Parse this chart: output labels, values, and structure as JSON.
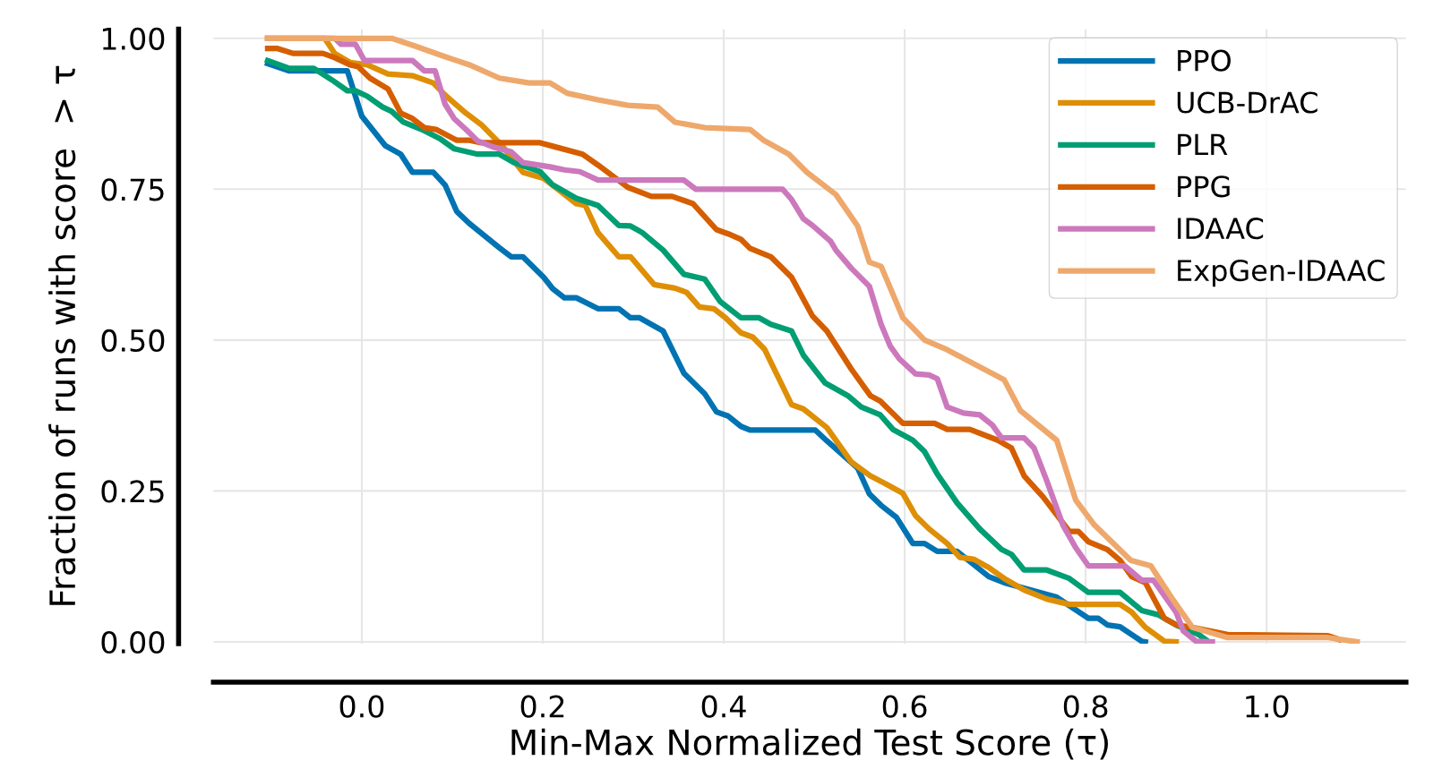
{
  "chart_data": {
    "type": "line",
    "xlabel": "Min-Max Normalized Test Score (τ)",
    "ylabel": "Fraction of runs with score  > τ",
    "xlim": [
      -0.164,
      1.154
    ],
    "ylim": [
      -0.003,
      1.015
    ],
    "xticks": [
      {
        "value": 0,
        "label": "0.0"
      },
      {
        "value": 0.2,
        "label": "0.2"
      },
      {
        "value": 0.4,
        "label": "0.4"
      },
      {
        "value": 0.6,
        "label": "0.6"
      },
      {
        "value": 0.8,
        "label": "0.8"
      },
      {
        "value": 1,
        "label": "1.0"
      }
    ],
    "yticks": [
      {
        "value": 0,
        "label": "0.00"
      },
      {
        "value": 0.25,
        "label": "0.25"
      },
      {
        "value": 0.5,
        "label": "0.50"
      },
      {
        "value": 0.75,
        "label": "0.75"
      },
      {
        "value": 1,
        "label": "1.00"
      }
    ],
    "grid": true,
    "legend": "top right",
    "line_style": "solid",
    "marker": "none",
    "series": [
      {
        "name": "PPO",
        "color": "#0173b2",
        "x": [
          -0.104,
          -0.08,
          -0.016,
          0.0,
          0.026,
          0.043,
          0.056,
          0.079,
          0.092,
          0.105,
          0.119,
          0.152,
          0.165,
          0.178,
          0.201,
          0.211,
          0.224,
          0.237,
          0.261,
          0.284,
          0.297,
          0.307,
          0.333,
          0.356,
          0.379,
          0.392,
          0.405,
          0.419,
          0.429,
          0.501,
          0.514,
          0.548,
          0.561,
          0.574,
          0.591,
          0.609,
          0.622,
          0.636,
          0.658,
          0.693,
          0.71,
          0.732,
          0.768,
          0.803,
          0.814,
          0.824,
          0.838,
          0.862,
          0.866
        ],
        "values": [
          0.958,
          0.946,
          0.946,
          0.871,
          0.822,
          0.808,
          0.778,
          0.778,
          0.757,
          0.713,
          0.693,
          0.653,
          0.638,
          0.638,
          0.604,
          0.585,
          0.57,
          0.57,
          0.552,
          0.552,
          0.537,
          0.537,
          0.515,
          0.445,
          0.411,
          0.381,
          0.374,
          0.357,
          0.351,
          0.351,
          0.333,
          0.288,
          0.245,
          0.226,
          0.206,
          0.163,
          0.163,
          0.15,
          0.15,
          0.108,
          0.098,
          0.089,
          0.074,
          0.039,
          0.039,
          0.028,
          0.025,
          0.001,
          0.0
        ]
      },
      {
        "name": "UCB-DrAC",
        "color": "#de8f05",
        "x": [
          -0.104,
          -0.041,
          -0.03,
          -0.013,
          0.006,
          0.029,
          0.056,
          0.079,
          0.092,
          0.115,
          0.132,
          0.155,
          0.178,
          0.201,
          0.214,
          0.237,
          0.247,
          0.261,
          0.284,
          0.297,
          0.323,
          0.346,
          0.359,
          0.373,
          0.389,
          0.402,
          0.419,
          0.432,
          0.445,
          0.475,
          0.488,
          0.514,
          0.541,
          0.562,
          0.58,
          0.598,
          0.612,
          0.627,
          0.647,
          0.661,
          0.676,
          0.693,
          0.71,
          0.732,
          0.757,
          0.782,
          0.838,
          0.851,
          0.866,
          0.887,
          0.9
        ],
        "values": [
          1.0,
          1.0,
          0.975,
          0.96,
          0.956,
          0.941,
          0.938,
          0.926,
          0.906,
          0.876,
          0.857,
          0.822,
          0.778,
          0.768,
          0.753,
          0.726,
          0.723,
          0.678,
          0.638,
          0.638,
          0.592,
          0.586,
          0.579,
          0.555,
          0.552,
          0.537,
          0.512,
          0.505,
          0.485,
          0.393,
          0.386,
          0.355,
          0.298,
          0.275,
          0.261,
          0.246,
          0.209,
          0.187,
          0.163,
          0.14,
          0.137,
          0.123,
          0.105,
          0.086,
          0.071,
          0.062,
          0.062,
          0.049,
          0.024,
          0.001,
          0.0
        ]
      },
      {
        "name": "PLR",
        "color": "#029e73",
        "x": [
          -0.104,
          -0.08,
          -0.053,
          -0.033,
          -0.016,
          -0.007,
          0.006,
          0.023,
          0.033,
          0.046,
          0.066,
          0.086,
          0.102,
          0.128,
          0.152,
          0.168,
          0.197,
          0.211,
          0.237,
          0.261,
          0.284,
          0.297,
          0.31,
          0.333,
          0.356,
          0.379,
          0.396,
          0.419,
          0.439,
          0.452,
          0.475,
          0.488,
          0.512,
          0.538,
          0.552,
          0.573,
          0.587,
          0.609,
          0.622,
          0.636,
          0.658,
          0.683,
          0.707,
          0.718,
          0.732,
          0.757,
          0.782,
          0.803,
          0.838,
          0.862,
          0.88,
          0.9,
          0.925,
          0.936
        ],
        "values": [
          0.963,
          0.95,
          0.95,
          0.931,
          0.913,
          0.913,
          0.904,
          0.886,
          0.879,
          0.861,
          0.849,
          0.834,
          0.817,
          0.808,
          0.808,
          0.794,
          0.779,
          0.757,
          0.735,
          0.723,
          0.69,
          0.689,
          0.678,
          0.649,
          0.609,
          0.601,
          0.564,
          0.537,
          0.537,
          0.526,
          0.515,
          0.475,
          0.429,
          0.407,
          0.389,
          0.376,
          0.352,
          0.334,
          0.315,
          0.278,
          0.23,
          0.187,
          0.153,
          0.145,
          0.119,
          0.119,
          0.105,
          0.082,
          0.082,
          0.052,
          0.045,
          0.028,
          0.012,
          0.0
        ]
      },
      {
        "name": "PPG",
        "color": "#d55e00",
        "x": [
          -0.104,
          -0.093,
          -0.076,
          -0.043,
          -0.03,
          -0.013,
          -0.004,
          0.009,
          0.029,
          0.043,
          0.056,
          0.069,
          0.082,
          0.105,
          0.119,
          0.132,
          0.197,
          0.214,
          0.244,
          0.261,
          0.294,
          0.32,
          0.343,
          0.366,
          0.392,
          0.405,
          0.419,
          0.429,
          0.452,
          0.475,
          0.498,
          0.514,
          0.541,
          0.562,
          0.573,
          0.598,
          0.633,
          0.647,
          0.672,
          0.703,
          0.718,
          0.732,
          0.753,
          0.782,
          0.792,
          0.803,
          0.824,
          0.838,
          0.851,
          0.866,
          0.887,
          0.9,
          0.918,
          0.957,
          1.068,
          1.08
        ],
        "values": [
          0.983,
          0.983,
          0.975,
          0.975,
          0.968,
          0.956,
          0.953,
          0.934,
          0.916,
          0.876,
          0.867,
          0.852,
          0.849,
          0.831,
          0.831,
          0.827,
          0.827,
          0.82,
          0.808,
          0.79,
          0.753,
          0.738,
          0.738,
          0.726,
          0.683,
          0.676,
          0.667,
          0.652,
          0.638,
          0.604,
          0.54,
          0.515,
          0.452,
          0.408,
          0.399,
          0.362,
          0.362,
          0.352,
          0.352,
          0.334,
          0.321,
          0.275,
          0.24,
          0.183,
          0.183,
          0.166,
          0.153,
          0.135,
          0.108,
          0.098,
          0.039,
          0.028,
          0.024,
          0.012,
          0.01,
          0.004
        ]
      },
      {
        "name": "IDAAC",
        "color": "#cc78bc",
        "x": [
          -0.104,
          -0.03,
          -0.023,
          -0.007,
          0.003,
          0.056,
          0.069,
          0.081,
          0.092,
          0.102,
          0.115,
          0.128,
          0.145,
          0.165,
          0.178,
          0.208,
          0.224,
          0.241,
          0.261,
          0.356,
          0.369,
          0.465,
          0.475,
          0.488,
          0.498,
          0.518,
          0.524,
          0.541,
          0.561,
          0.574,
          0.584,
          0.594,
          0.612,
          0.627,
          0.636,
          0.647,
          0.665,
          0.683,
          0.697,
          0.707,
          0.732,
          0.743,
          0.757,
          0.775,
          0.789,
          0.803,
          0.843,
          0.851,
          0.862,
          0.875,
          0.9,
          0.908,
          0.922,
          0.94
        ],
        "values": [
          1.0,
          1.0,
          0.99,
          0.99,
          0.963,
          0.963,
          0.946,
          0.946,
          0.891,
          0.867,
          0.849,
          0.83,
          0.82,
          0.812,
          0.794,
          0.787,
          0.782,
          0.779,
          0.765,
          0.765,
          0.75,
          0.75,
          0.733,
          0.701,
          0.69,
          0.664,
          0.649,
          0.619,
          0.589,
          0.526,
          0.49,
          0.469,
          0.444,
          0.442,
          0.436,
          0.389,
          0.379,
          0.376,
          0.359,
          0.338,
          0.338,
          0.321,
          0.267,
          0.193,
          0.156,
          0.126,
          0.126,
          0.116,
          0.102,
          0.102,
          0.049,
          0.018,
          0.001,
          0.0
        ]
      },
      {
        "name": "ExpGen-IDAAC",
        "color": "#eea86c",
        "x": [
          -0.104,
          0.033,
          0.059,
          0.089,
          0.119,
          0.152,
          0.185,
          0.208,
          0.227,
          0.261,
          0.294,
          0.327,
          0.346,
          0.379,
          0.429,
          0.445,
          0.472,
          0.492,
          0.524,
          0.548,
          0.561,
          0.574,
          0.598,
          0.622,
          0.647,
          0.71,
          0.728,
          0.768,
          0.789,
          0.81,
          0.85,
          0.872,
          0.896,
          0.918,
          0.957,
          1.068,
          1.1
        ],
        "values": [
          1.0,
          1.0,
          0.987,
          0.971,
          0.956,
          0.934,
          0.926,
          0.926,
          0.909,
          0.898,
          0.889,
          0.886,
          0.861,
          0.852,
          0.849,
          0.83,
          0.808,
          0.778,
          0.741,
          0.689,
          0.629,
          0.622,
          0.537,
          0.5,
          0.484,
          0.434,
          0.383,
          0.334,
          0.235,
          0.193,
          0.135,
          0.126,
          0.071,
          0.024,
          0.007,
          0.007,
          0.0
        ]
      }
    ]
  }
}
